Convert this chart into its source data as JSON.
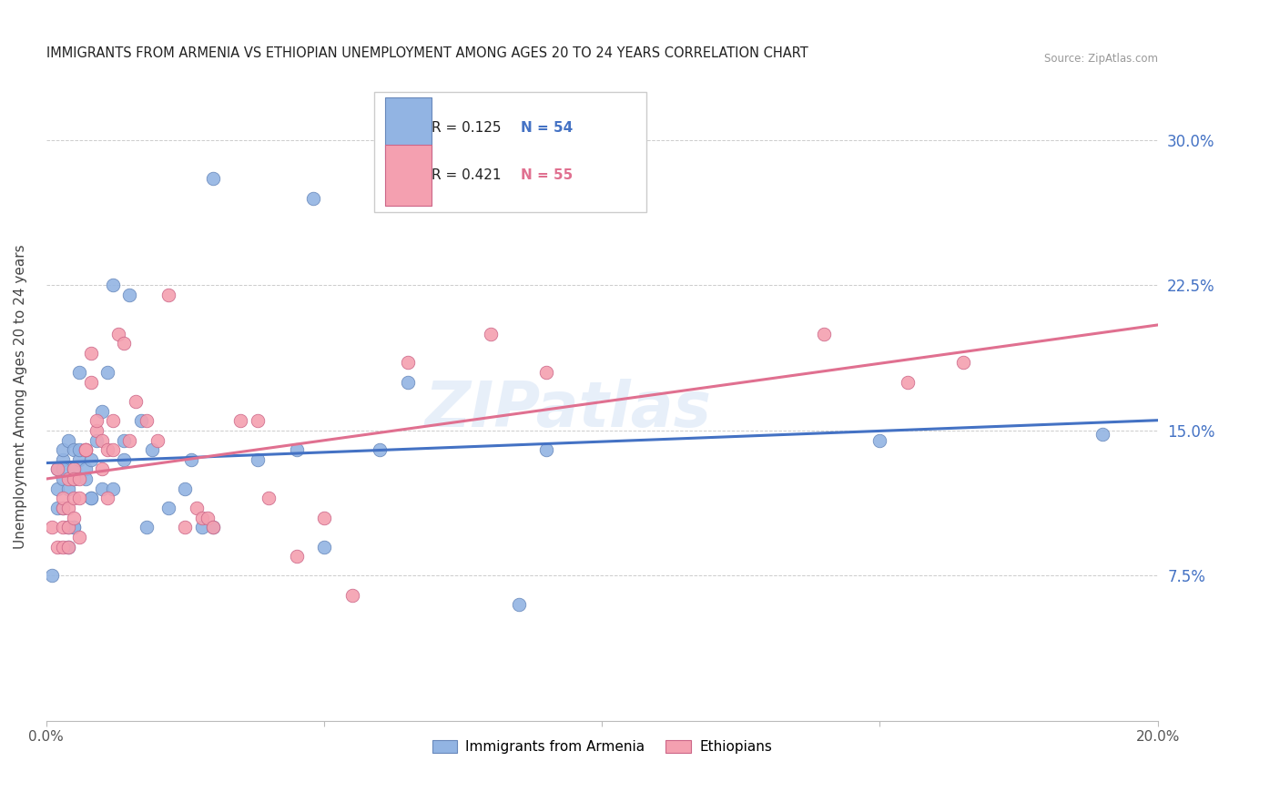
{
  "title": "IMMIGRANTS FROM ARMENIA VS ETHIOPIAN UNEMPLOYMENT AMONG AGES 20 TO 24 YEARS CORRELATION CHART",
  "source": "Source: ZipAtlas.com",
  "ylabel": "Unemployment Among Ages 20 to 24 years",
  "ytick_labels": [
    "7.5%",
    "15.0%",
    "22.5%",
    "30.0%"
  ],
  "ytick_values": [
    0.075,
    0.15,
    0.225,
    0.3
  ],
  "xlim": [
    0.0,
    0.2
  ],
  "ylim": [
    0.0,
    0.335
  ],
  "legend_r1": "R = 0.125",
  "legend_n1": "N = 54",
  "legend_r2": "R = 0.421",
  "legend_n2": "N = 55",
  "series1_label": "Immigrants from Armenia",
  "series2_label": "Ethiopians",
  "series1_color": "#92b4e3",
  "series2_color": "#f4a0b0",
  "line1_color": "#4472c4",
  "line2_color": "#e07090",
  "right_axis_color": "#4472c4",
  "watermark": "ZIPatlas",
  "background_color": "#ffffff",
  "grid_color": "#cccccc",
  "armenia_x": [
    0.001,
    0.002,
    0.002,
    0.002,
    0.003,
    0.003,
    0.003,
    0.003,
    0.003,
    0.004,
    0.004,
    0.004,
    0.004,
    0.005,
    0.005,
    0.005,
    0.005,
    0.005,
    0.006,
    0.006,
    0.006,
    0.007,
    0.007,
    0.008,
    0.008,
    0.008,
    0.009,
    0.01,
    0.01,
    0.011,
    0.012,
    0.012,
    0.014,
    0.014,
    0.015,
    0.017,
    0.018,
    0.019,
    0.022,
    0.025,
    0.026,
    0.028,
    0.03,
    0.03,
    0.038,
    0.045,
    0.048,
    0.05,
    0.06,
    0.065,
    0.085,
    0.09,
    0.15,
    0.19
  ],
  "armenia_y": [
    0.075,
    0.13,
    0.12,
    0.11,
    0.135,
    0.125,
    0.13,
    0.14,
    0.11,
    0.145,
    0.12,
    0.1,
    0.09,
    0.14,
    0.13,
    0.125,
    0.1,
    0.1,
    0.135,
    0.14,
    0.18,
    0.13,
    0.125,
    0.135,
    0.115,
    0.115,
    0.145,
    0.16,
    0.12,
    0.18,
    0.225,
    0.12,
    0.145,
    0.135,
    0.22,
    0.155,
    0.1,
    0.14,
    0.11,
    0.12,
    0.135,
    0.1,
    0.1,
    0.28,
    0.135,
    0.14,
    0.27,
    0.09,
    0.14,
    0.175,
    0.06,
    0.14,
    0.145,
    0.148
  ],
  "ethiopian_x": [
    0.001,
    0.002,
    0.002,
    0.003,
    0.003,
    0.003,
    0.003,
    0.004,
    0.004,
    0.004,
    0.004,
    0.005,
    0.005,
    0.005,
    0.005,
    0.006,
    0.006,
    0.006,
    0.007,
    0.007,
    0.007,
    0.008,
    0.008,
    0.009,
    0.009,
    0.01,
    0.01,
    0.011,
    0.011,
    0.012,
    0.012,
    0.013,
    0.014,
    0.015,
    0.016,
    0.018,
    0.02,
    0.022,
    0.025,
    0.027,
    0.028,
    0.029,
    0.03,
    0.035,
    0.038,
    0.04,
    0.045,
    0.05,
    0.055,
    0.065,
    0.08,
    0.09,
    0.14,
    0.155,
    0.165
  ],
  "ethiopian_y": [
    0.1,
    0.13,
    0.09,
    0.09,
    0.11,
    0.1,
    0.115,
    0.125,
    0.1,
    0.09,
    0.11,
    0.13,
    0.115,
    0.125,
    0.105,
    0.115,
    0.125,
    0.095,
    0.14,
    0.14,
    0.14,
    0.19,
    0.175,
    0.15,
    0.155,
    0.13,
    0.145,
    0.14,
    0.115,
    0.14,
    0.155,
    0.2,
    0.195,
    0.145,
    0.165,
    0.155,
    0.145,
    0.22,
    0.1,
    0.11,
    0.105,
    0.105,
    0.1,
    0.155,
    0.155,
    0.115,
    0.085,
    0.105,
    0.065,
    0.185,
    0.2,
    0.18,
    0.2,
    0.175,
    0.185
  ]
}
